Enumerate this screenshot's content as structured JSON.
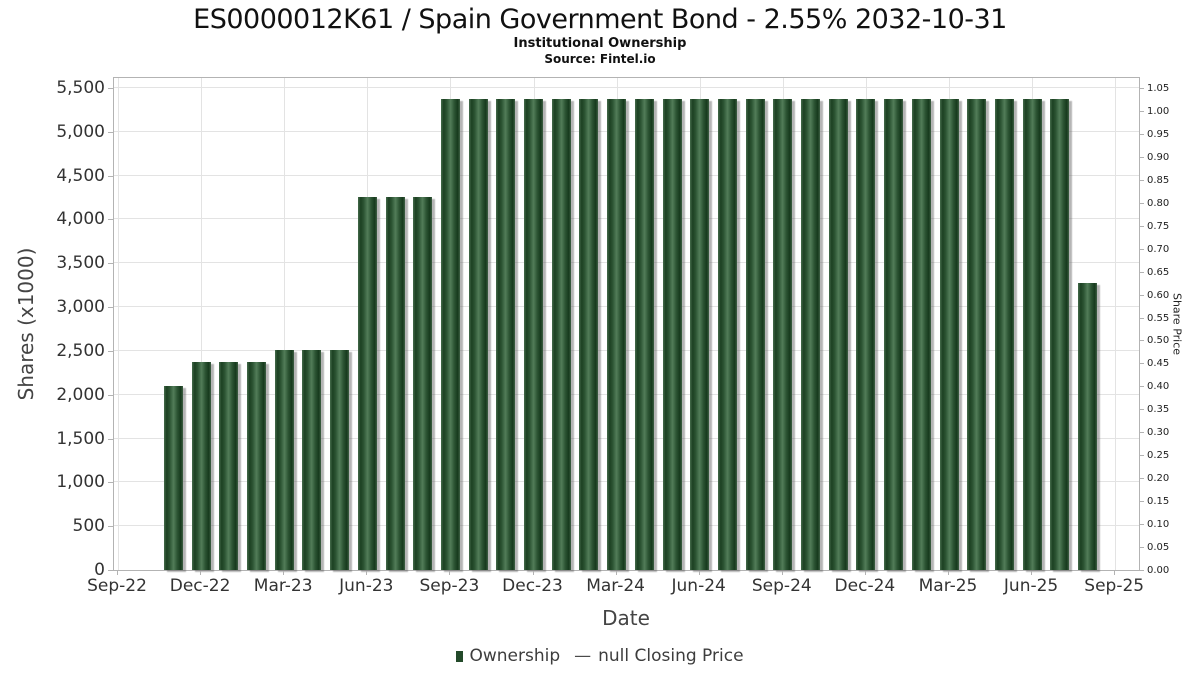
{
  "header": {
    "title": "ES0000012K61 / Spain Government Bond - 2.55% 2032-10-31",
    "subtitle": "Institutional Ownership",
    "source": "Source: Fintel.io"
  },
  "axes": {
    "left_title": "Shares (x1000)",
    "right_title": "Share Price",
    "x_title": "Date"
  },
  "legend": {
    "ownership_label": "Ownership",
    "dash": "—",
    "price_label": "null Closing Price"
  },
  "chart_data": {
    "type": "bar",
    "title": "ES0000012K61 / Spain Government Bond - 2.55% 2032-10-31",
    "subtitle": "Institutional Ownership",
    "source": "Source: Fintel.io",
    "xlabel": "Date",
    "ylabel_left": "Shares (x1000)",
    "ylabel_right": "Share Price",
    "grid": true,
    "legend_position": "bottom",
    "x_tick_labels": [
      "Sep-22",
      "Dec-22",
      "Mar-23",
      "Jun-23",
      "Sep-23",
      "Dec-23",
      "Mar-24",
      "Jun-24",
      "Sep-24",
      "Dec-24",
      "Mar-25",
      "Jun-25",
      "Sep-25"
    ],
    "y_left_ticks": [
      0,
      500,
      1000,
      1500,
      2000,
      2500,
      3000,
      3500,
      4000,
      4500,
      5000,
      5500
    ],
    "y_right_ticks": [
      "0.00",
      "0.05",
      "0.10",
      "0.15",
      "0.20",
      "0.25",
      "0.30",
      "0.35",
      "0.40",
      "0.45",
      "0.50",
      "0.55",
      "0.60",
      "0.65",
      "0.70",
      "0.75",
      "0.80",
      "0.85",
      "0.90",
      "0.95",
      "1.00",
      "1.05"
    ],
    "ylim_left": [
      0,
      5500
    ],
    "ylim_right": [
      0,
      1.05
    ],
    "bar_color": "#234a2a",
    "series": [
      {
        "name": "Ownership",
        "type": "bar",
        "unit": "shares x1000",
        "points": [
          {
            "month": "Nov-22",
            "value": 2100
          },
          {
            "month": "Dec-22",
            "value": 2375
          },
          {
            "month": "Jan-23",
            "value": 2375
          },
          {
            "month": "Feb-23",
            "value": 2375
          },
          {
            "month": "Mar-23",
            "value": 2510
          },
          {
            "month": "Apr-23",
            "value": 2510
          },
          {
            "month": "May-23",
            "value": 2510
          },
          {
            "month": "Jun-23",
            "value": 4255
          },
          {
            "month": "Jul-23",
            "value": 4255
          },
          {
            "month": "Aug-23",
            "value": 4255
          },
          {
            "month": "Sep-23",
            "value": 5380
          },
          {
            "month": "Oct-23",
            "value": 5380
          },
          {
            "month": "Nov-23",
            "value": 5380
          },
          {
            "month": "Dec-23",
            "value": 5380
          },
          {
            "month": "Jan-24",
            "value": 5380
          },
          {
            "month": "Feb-24",
            "value": 5380
          },
          {
            "month": "Mar-24",
            "value": 5380
          },
          {
            "month": "Apr-24",
            "value": 5380
          },
          {
            "month": "May-24",
            "value": 5380
          },
          {
            "month": "Jun-24",
            "value": 5380
          },
          {
            "month": "Jul-24",
            "value": 5380
          },
          {
            "month": "Aug-24",
            "value": 5380
          },
          {
            "month": "Sep-24",
            "value": 5380
          },
          {
            "month": "Oct-24",
            "value": 5380
          },
          {
            "month": "Nov-24",
            "value": 5380
          },
          {
            "month": "Dec-24",
            "value": 5380
          },
          {
            "month": "Jan-25",
            "value": 5380
          },
          {
            "month": "Feb-25",
            "value": 5380
          },
          {
            "month": "Mar-25",
            "value": 5380
          },
          {
            "month": "Apr-25",
            "value": 5380
          },
          {
            "month": "May-25",
            "value": 5380
          },
          {
            "month": "Jun-25",
            "value": 5380
          },
          {
            "month": "Jul-25",
            "value": 5380
          },
          {
            "month": "Aug-25",
            "value": 3270
          }
        ]
      },
      {
        "name": "null Closing Price",
        "type": "line",
        "values": []
      }
    ]
  }
}
